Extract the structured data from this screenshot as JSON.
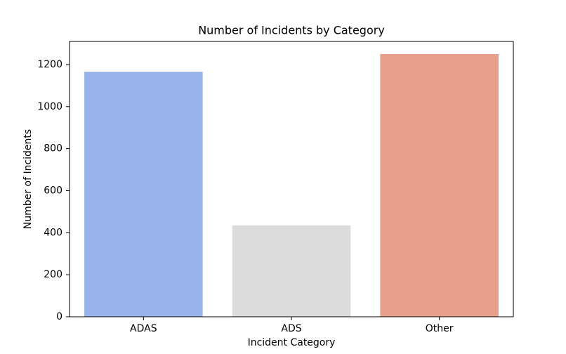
{
  "chart_data": {
    "type": "bar",
    "title": "Number of Incidents by Category",
    "x_label": "Incident Category",
    "y_label": "Number of Incidents",
    "categories": [
      "ADAS",
      "ADS",
      "Other"
    ],
    "values": [
      1166,
      435,
      1250
    ],
    "colors": [
      "#98b3ec",
      "#dcdcdc",
      "#e7a08a"
    ],
    "ylim": [
      0,
      1310
    ],
    "yticks": [
      0,
      200,
      400,
      600,
      800,
      1000,
      1200
    ],
    "grid": false
  }
}
